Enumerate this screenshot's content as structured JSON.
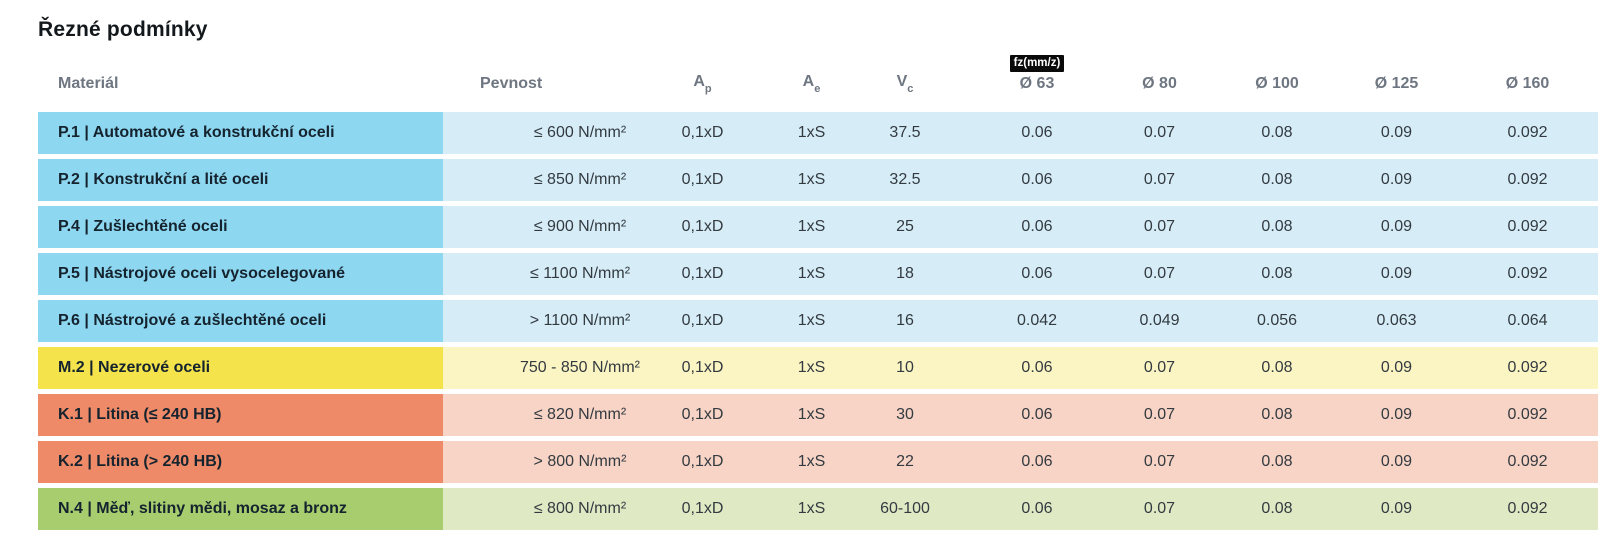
{
  "page": {
    "title": "Řezné podmínky",
    "background": "#ffffff"
  },
  "colors": {
    "blue": {
      "label": "#8ed7f0",
      "data": "#d6edf8"
    },
    "yellow": {
      "label": "#f4e34a",
      "data": "#fbf5c4"
    },
    "salmon": {
      "label": "#ee8a68",
      "data": "#f7d4c5"
    },
    "green": {
      "label": "#a8cd6f",
      "data": "#dfeac5"
    },
    "header_text": "#6e7681",
    "label_text": "#14232e",
    "value_text": "#333a40",
    "badge_bg": "#0a0a0a",
    "badge_text": "#ffffff"
  },
  "table": {
    "headers": {
      "material": "Materiál",
      "pevnost": "Pevnost",
      "ap": {
        "base": "A",
        "sub": "p"
      },
      "ae": {
        "base": "A",
        "sub": "e"
      },
      "vc": {
        "base": "V",
        "sub": "c"
      },
      "fz_badge": "fz(mm/z)",
      "diameters": [
        "Ø 63",
        "Ø 80",
        "Ø 100",
        "Ø 125",
        "Ø 160"
      ]
    },
    "rows": [
      {
        "material": "P.1 | Automatové a konstrukční oceli",
        "pevnost": "≤ 600 N/mm²",
        "ap": "0,1xD",
        "ae": "1xS",
        "vc": "37.5",
        "fz": [
          "0.06",
          "0.07",
          "0.08",
          "0.09",
          "0.092"
        ],
        "color": "blue"
      },
      {
        "material": "P.2 | Konstrukční a lité oceli",
        "pevnost": "≤ 850 N/mm²",
        "ap": "0,1xD",
        "ae": "1xS",
        "vc": "32.5",
        "fz": [
          "0.06",
          "0.07",
          "0.08",
          "0.09",
          "0.092"
        ],
        "color": "blue"
      },
      {
        "material": "P.4 | Zušlechtěné oceli",
        "pevnost": "≤ 900 N/mm²",
        "ap": "0,1xD",
        "ae": "1xS",
        "vc": "25",
        "fz": [
          "0.06",
          "0.07",
          "0.08",
          "0.09",
          "0.092"
        ],
        "color": "blue"
      },
      {
        "material": "P.5 | Nástrojové oceli vysocelegované",
        "pevnost": "≤ 1100 N/mm²",
        "ap": "0,1xD",
        "ae": "1xS",
        "vc": "18",
        "fz": [
          "0.06",
          "0.07",
          "0.08",
          "0.09",
          "0.092"
        ],
        "color": "blue"
      },
      {
        "material": "P.6 | Nástrojové a zušlechtěné oceli",
        "pevnost": "> 1100 N/mm²",
        "ap": "0,1xD",
        "ae": "1xS",
        "vc": "16",
        "fz": [
          "0.042",
          "0.049",
          "0.056",
          "0.063",
          "0.064"
        ],
        "color": "blue"
      },
      {
        "material": "M.2 | Nezerové oceli",
        "pevnost": "750 - 850 N/mm²",
        "ap": "0,1xD",
        "ae": "1xS",
        "vc": "10",
        "fz": [
          "0.06",
          "0.07",
          "0.08",
          "0.09",
          "0.092"
        ],
        "color": "yellow"
      },
      {
        "material": "K.1 | Litina (≤ 240 HB)",
        "pevnost": "≤ 820 N/mm²",
        "ap": "0,1xD",
        "ae": "1xS",
        "vc": "30",
        "fz": [
          "0.06",
          "0.07",
          "0.08",
          "0.09",
          "0.092"
        ],
        "color": "salmon"
      },
      {
        "material": "K.2 | Litina (> 240 HB)",
        "pevnost": "> 800 N/mm²",
        "ap": "0,1xD",
        "ae": "1xS",
        "vc": "22",
        "fz": [
          "0.06",
          "0.07",
          "0.08",
          "0.09",
          "0.092"
        ],
        "color": "salmon"
      },
      {
        "material": "N.4 | Měď, slitiny mědi, mosaz a bronz",
        "pevnost": "≤ 800 N/mm²",
        "ap": "0,1xD",
        "ae": "1xS",
        "vc": "60-100",
        "fz": [
          "0.06",
          "0.07",
          "0.08",
          "0.09",
          "0.092"
        ],
        "color": "green"
      }
    ]
  }
}
